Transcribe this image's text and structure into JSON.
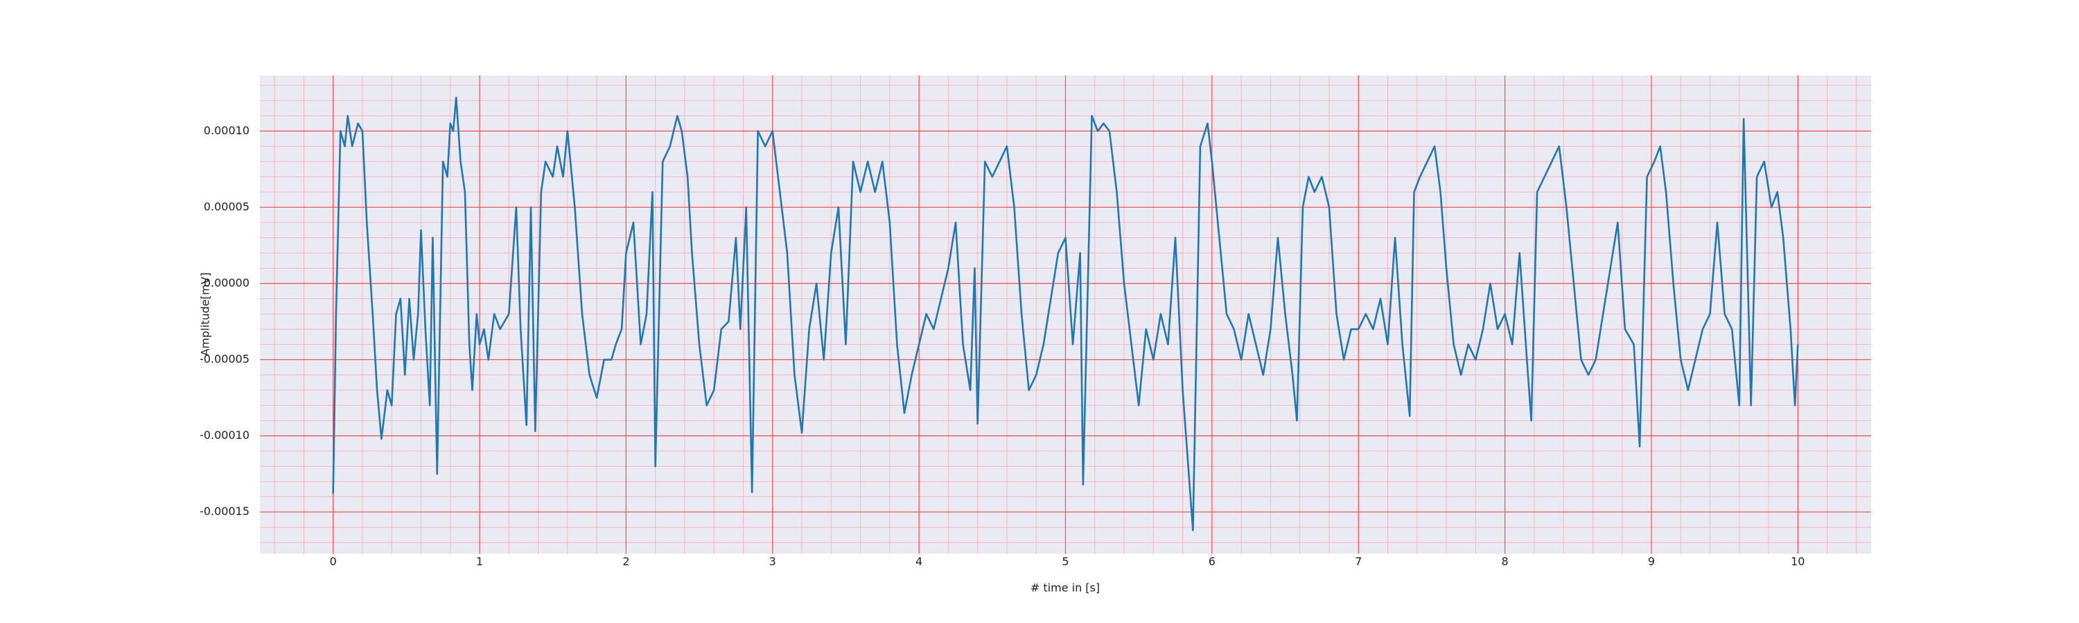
{
  "chart_data": {
    "type": "line",
    "xlabel": "# time in [s]",
    "ylabel": "Amplitude[mV]",
    "color": "#1f77b4",
    "background": "#eaeaf2",
    "grid": true,
    "grid_color": "#ff4d4d",
    "minor_grid": {
      "x_step": 0.2,
      "y_step": 1e-05,
      "color": "#f7b6c2"
    },
    "xlim": [
      -0.5,
      10.5
    ],
    "xticks": [
      0,
      1,
      2,
      3,
      4,
      5,
      6,
      7,
      8,
      9,
      10
    ],
    "ylim": [
      -0.0001774,
      0.0001365
    ],
    "yticks": [
      {
        "value": -0.00015,
        "label": "-0.00015"
      },
      {
        "value": -0.0001,
        "label": "-0.00010"
      },
      {
        "value": -5e-05,
        "label": "-0.00005"
      },
      {
        "value": 0,
        "label": "0.00000"
      },
      {
        "value": 5e-05,
        "label": "0.00005"
      },
      {
        "value": 0.0001,
        "label": "0.00010"
      }
    ],
    "x": [
      0,
      0.02,
      0.05,
      0.08,
      0.1,
      0.13,
      0.17,
      0.2,
      0.23,
      0.27,
      0.3,
      0.33,
      0.37,
      0.4,
      0.43,
      0.46,
      0.49,
      0.52,
      0.55,
      0.58,
      0.6,
      0.63,
      0.66,
      0.68,
      0.71,
      0.75,
      0.78,
      0.8,
      0.82,
      0.84,
      0.87,
      0.9,
      0.93,
      0.95,
      0.98,
      1.0,
      1.03,
      1.06,
      1.1,
      1.14,
      1.2,
      1.25,
      1.28,
      1.32,
      1.35,
      1.38,
      1.42,
      1.45,
      1.5,
      1.53,
      1.57,
      1.6,
      1.65,
      1.7,
      1.75,
      1.8,
      1.85,
      1.9,
      1.93,
      1.97,
      2.0,
      2.05,
      2.1,
      2.14,
      2.18,
      2.2,
      2.25,
      2.3,
      2.35,
      2.38,
      2.42,
      2.45,
      2.5,
      2.55,
      2.6,
      2.65,
      2.7,
      2.75,
      2.78,
      2.82,
      2.86,
      2.9,
      2.95,
      3.0,
      3.05,
      3.1,
      3.15,
      3.2,
      3.25,
      3.3,
      3.35,
      3.4,
      3.45,
      3.5,
      3.55,
      3.6,
      3.65,
      3.7,
      3.75,
      3.8,
      3.85,
      3.9,
      3.95,
      4.0,
      4.05,
      4.1,
      4.15,
      4.2,
      4.25,
      4.3,
      4.35,
      4.38,
      4.4,
      4.45,
      4.5,
      4.55,
      4.6,
      4.65,
      4.7,
      4.75,
      4.8,
      4.85,
      4.9,
      4.95,
      5.0,
      5.05,
      5.1,
      5.12,
      5.18,
      5.22,
      5.26,
      5.3,
      5.35,
      5.4,
      5.45,
      5.5,
      5.55,
      5.6,
      5.65,
      5.7,
      5.75,
      5.8,
      5.87,
      5.92,
      5.97,
      6.0,
      6.05,
      6.1,
      6.15,
      6.2,
      6.25,
      6.3,
      6.35,
      6.4,
      6.45,
      6.5,
      6.55,
      6.58,
      6.62,
      6.66,
      6.7,
      6.75,
      6.8,
      6.85,
      6.9,
      6.95,
      7.0,
      7.05,
      7.1,
      7.15,
      7.2,
      7.25,
      7.3,
      7.35,
      7.38,
      7.42,
      7.47,
      7.52,
      7.56,
      7.6,
      7.65,
      7.7,
      7.75,
      7.8,
      7.85,
      7.9,
      7.95,
      8.0,
      8.05,
      8.1,
      8.15,
      8.18,
      8.22,
      8.27,
      8.32,
      8.37,
      8.42,
      8.47,
      8.52,
      8.57,
      8.62,
      8.67,
      8.72,
      8.77,
      8.82,
      8.88,
      8.92,
      8.97,
      9.02,
      9.06,
      9.1,
      9.15,
      9.2,
      9.25,
      9.3,
      9.35,
      9.4,
      9.45,
      9.5,
      9.55,
      9.6,
      9.63,
      9.68,
      9.72,
      9.77,
      9.82,
      9.86,
      9.9,
      9.95,
      9.98,
      10.0
    ],
    "values": [
      -0.000138,
      -2e-05,
      0.0001,
      9e-05,
      0.00011,
      9e-05,
      0.000105,
      0.0001,
      4e-05,
      -2e-05,
      -7e-05,
      -0.000102,
      -7e-05,
      -8e-05,
      -2e-05,
      -1e-05,
      -6e-05,
      -1e-05,
      -5e-05,
      -2e-05,
      3.5e-05,
      -3e-05,
      -8e-05,
      3e-05,
      -0.000125,
      8e-05,
      7e-05,
      0.000105,
      0.0001,
      0.000122,
      8e-05,
      6e-05,
      -4e-05,
      -7e-05,
      -2e-05,
      -4e-05,
      -3e-05,
      -5e-05,
      -2e-05,
      -3e-05,
      -2e-05,
      5e-05,
      -3e-05,
      -9.3e-05,
      5e-05,
      -9.7e-05,
      6e-05,
      8e-05,
      7e-05,
      9e-05,
      7e-05,
      0.0001,
      5e-05,
      -2e-05,
      -6e-05,
      -7.5e-05,
      -5e-05,
      -5e-05,
      -4e-05,
      -3e-05,
      2e-05,
      4e-05,
      -4e-05,
      -2e-05,
      6e-05,
      -0.00012,
      8e-05,
      9e-05,
      0.00011,
      0.0001,
      7e-05,
      2e-05,
      -4e-05,
      -8e-05,
      -7e-05,
      -3e-05,
      -2.5e-05,
      3e-05,
      -3e-05,
      5e-05,
      -0.000137,
      0.0001,
      9e-05,
      0.0001,
      6e-05,
      2e-05,
      -6e-05,
      -9.8e-05,
      -3e-05,
      0,
      -5e-05,
      2e-05,
      5e-05,
      -4e-05,
      8e-05,
      6e-05,
      8e-05,
      6e-05,
      8e-05,
      4e-05,
      -4e-05,
      -8.5e-05,
      -6e-05,
      -4e-05,
      -2e-05,
      -3e-05,
      -1e-05,
      1e-05,
      4e-05,
      -4e-05,
      -7e-05,
      1e-05,
      -9.2e-05,
      8e-05,
      7e-05,
      8e-05,
      9e-05,
      5e-05,
      -2e-05,
      -7e-05,
      -6e-05,
      -4e-05,
      -1e-05,
      2e-05,
      3e-05,
      -4e-05,
      2e-05,
      -0.000132,
      0.00011,
      0.0001,
      0.000105,
      0.0001,
      6e-05,
      0,
      -4e-05,
      -8e-05,
      -3e-05,
      -5e-05,
      -2e-05,
      -4e-05,
      3e-05,
      -7e-05,
      -0.000162,
      9e-05,
      0.000105,
      8e-05,
      3e-05,
      -2e-05,
      -3e-05,
      -5e-05,
      -2e-05,
      -4e-05,
      -6e-05,
      -3e-05,
      3e-05,
      -2e-05,
      -6e-05,
      -9e-05,
      5e-05,
      7e-05,
      6e-05,
      7e-05,
      5e-05,
      -2e-05,
      -5e-05,
      -3e-05,
      -3e-05,
      -2e-05,
      -3e-05,
      -1e-05,
      -4e-05,
      3e-05,
      -4e-05,
      -8.7e-05,
      6e-05,
      7e-05,
      8e-05,
      9e-05,
      6e-05,
      1e-05,
      -4e-05,
      -6e-05,
      -4e-05,
      -5e-05,
      -3e-05,
      0,
      -3e-05,
      -2e-05,
      -4e-05,
      2e-05,
      -5e-05,
      -9e-05,
      6e-05,
      7e-05,
      8e-05,
      9e-05,
      5e-05,
      0,
      -5e-05,
      -6e-05,
      -5e-05,
      -2e-05,
      1e-05,
      4e-05,
      -3e-05,
      -4e-05,
      -0.000107,
      7e-05,
      8e-05,
      9e-05,
      6e-05,
      0,
      -5e-05,
      -7e-05,
      -5e-05,
      -3e-05,
      -2e-05,
      4e-05,
      -2e-05,
      -3e-05,
      -8e-05,
      0.000108,
      -8e-05,
      7e-05,
      8e-05,
      5e-05,
      6e-05,
      3e-05,
      -3e-05,
      -8e-05,
      -4e-05
    ]
  }
}
